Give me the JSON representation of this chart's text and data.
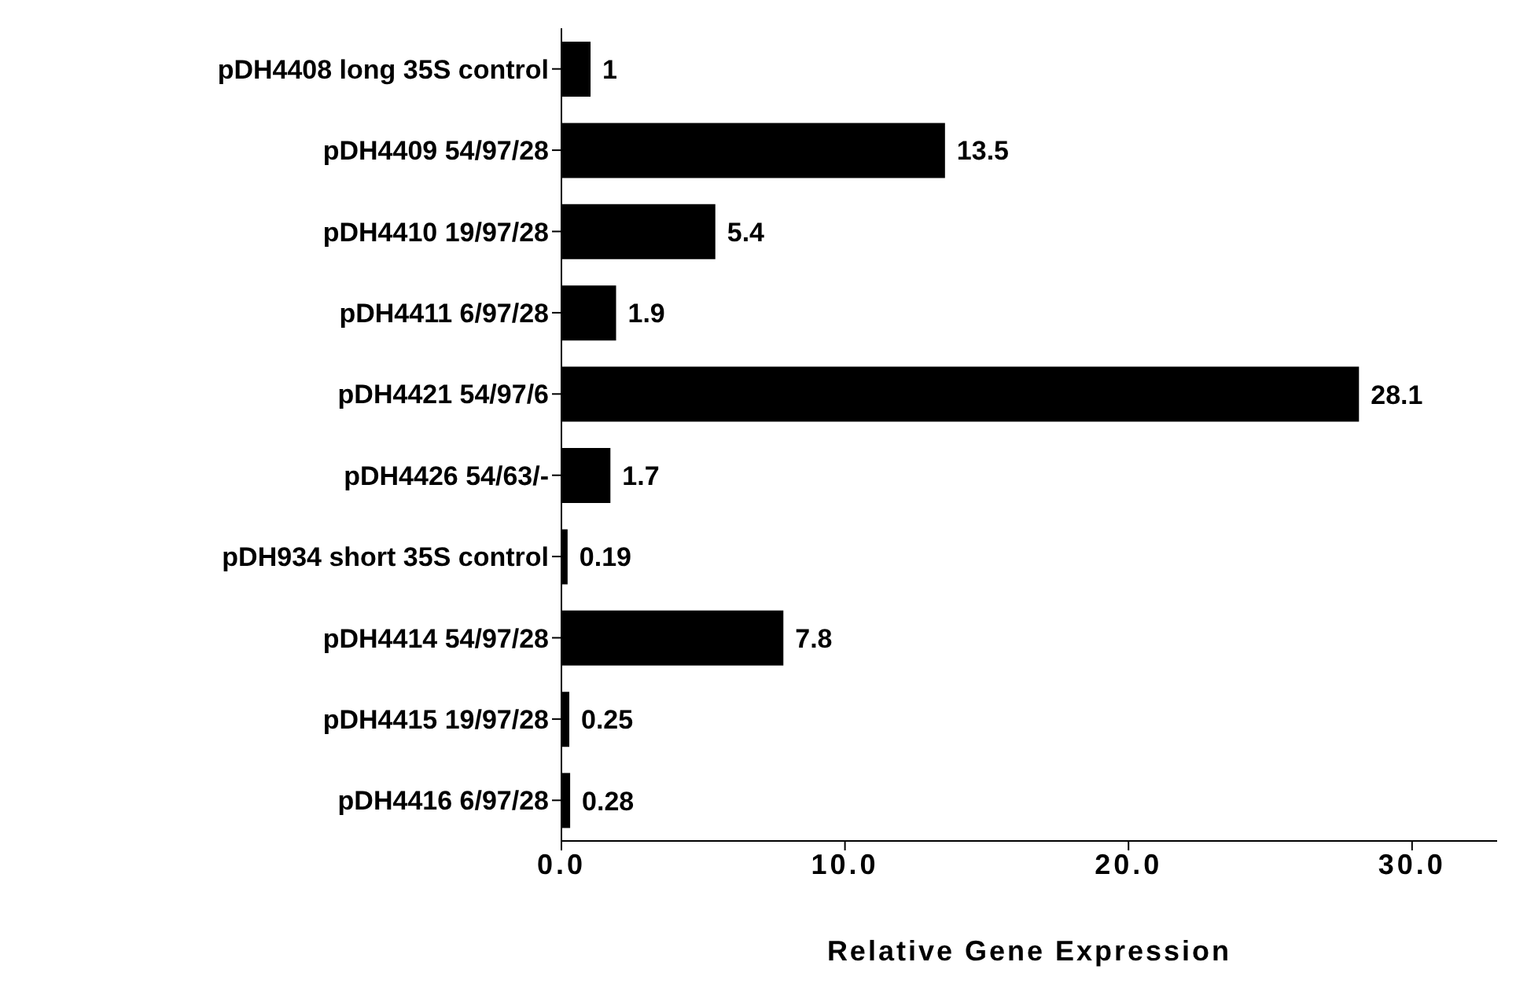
{
  "chart_data": {
    "type": "bar",
    "orientation": "horizontal",
    "xlabel": "Relative  Gene  Expression",
    "categories": [
      "pDH4408  long 35S control",
      "pDH4409  54/97/28",
      "pDH4410  19/97/28",
      "pDH4411    6/97/28",
      "pDH4421    54/97/6",
      "pDH4426    54/63/-",
      "pDH934 short 35S control",
      "pDH4414  54/97/28",
      "pDH4415  19/97/28",
      "pDH4416    6/97/28"
    ],
    "values": [
      1,
      13.5,
      5.4,
      1.9,
      28.1,
      1.7,
      0.19,
      7.8,
      0.25,
      0.28
    ],
    "color": "#000000",
    "xlim": [
      0,
      33
    ],
    "xticks": [
      {
        "value": 0,
        "label": "0.0"
      },
      {
        "value": 10,
        "label": "10.0"
      },
      {
        "value": 20,
        "label": "20.0"
      },
      {
        "value": 30,
        "label": "30.0"
      }
    ],
    "data_labels": true,
    "grid": false
  }
}
